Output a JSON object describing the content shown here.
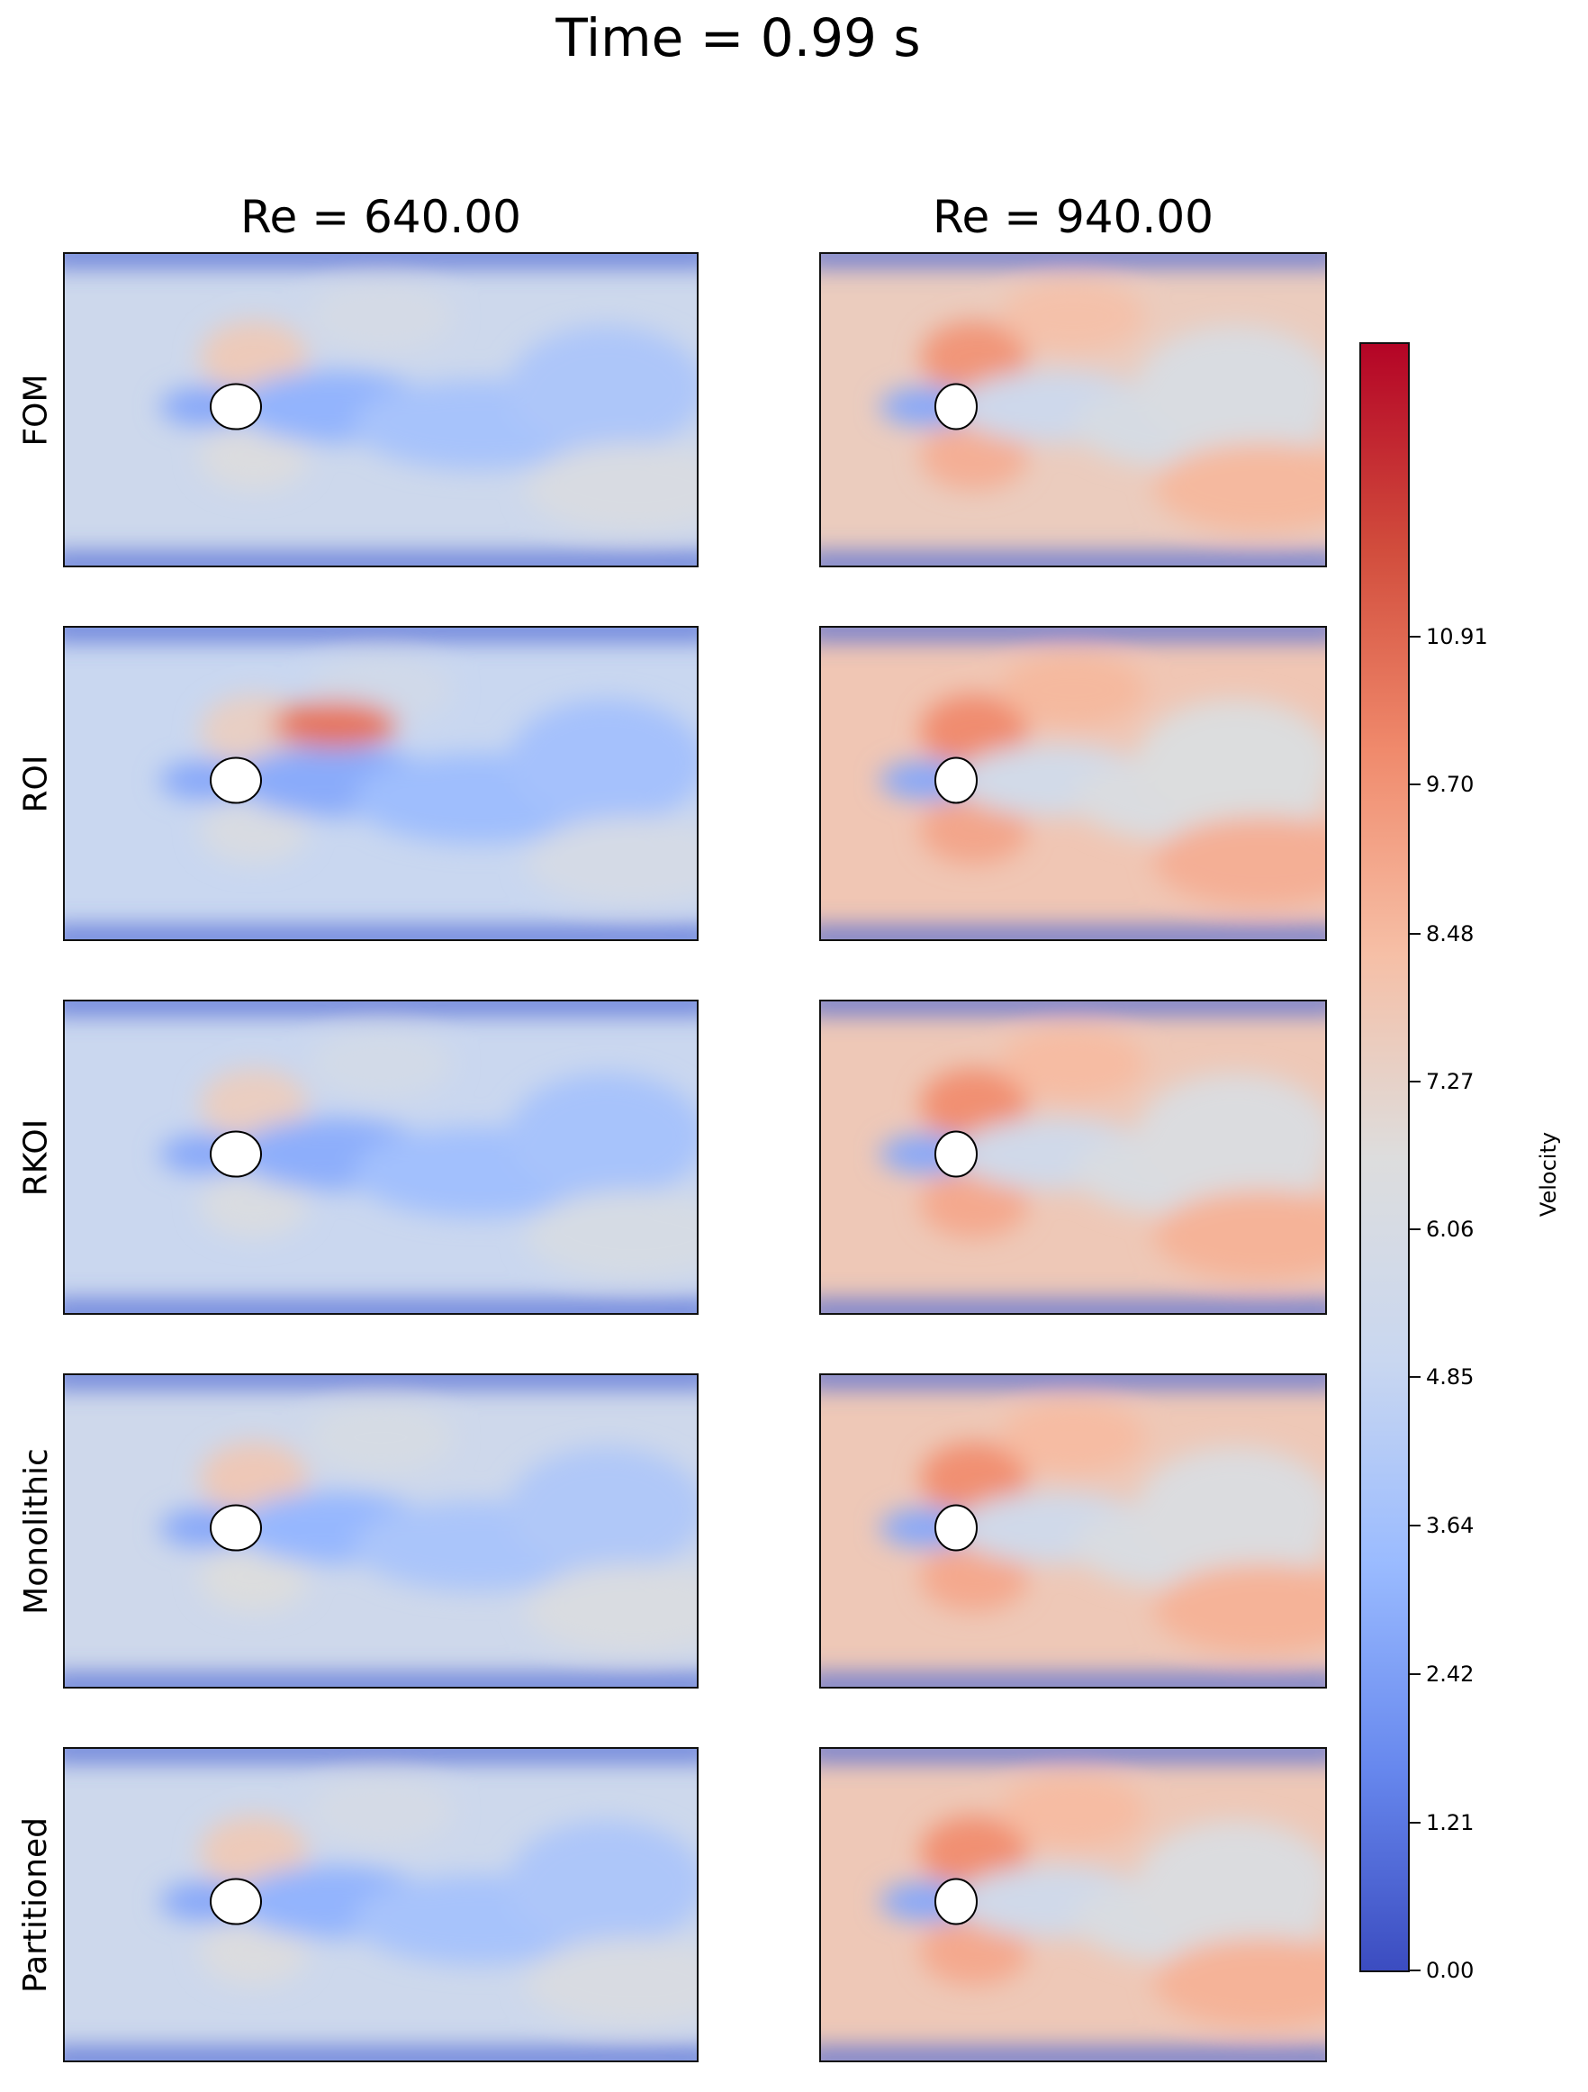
{
  "chart_data": {
    "type": "heatmap",
    "title": "Time = 0.99 s",
    "columns": [
      "Re = 640.00",
      "Re = 940.00"
    ],
    "rows": [
      "FOM",
      "ROI",
      "RKOI",
      "Monolithic",
      "Partitioned"
    ],
    "colorbar": {
      "label": "Velocity",
      "range": [
        0.0,
        13.3
      ],
      "ticks": [
        "0.00",
        "1.21",
        "2.42",
        "3.64",
        "4.85",
        "6.06",
        "7.27",
        "8.48",
        "9.70",
        "10.91"
      ],
      "colormap": "coolwarm",
      "colors": [
        "#3b4cc0",
        "#6788ee",
        "#9abbff",
        "#c9d7f0",
        "#dddddd",
        "#f6bfa6",
        "#f08a6c",
        "#d14c3c",
        "#b40426"
      ]
    },
    "field_summary": {
      "Re = 640.00": {
        "FOM": 5.3,
        "ROI": 5.0,
        "RKOI": 5.1,
        "Monolithic": 5.4,
        "Partitioned": 5.3
      },
      "Re = 940.00": {
        "FOM": 7.6,
        "ROI": 7.9,
        "RKOI": 7.8,
        "Monolithic": 7.8,
        "Partitioned": 7.8
      }
    }
  }
}
